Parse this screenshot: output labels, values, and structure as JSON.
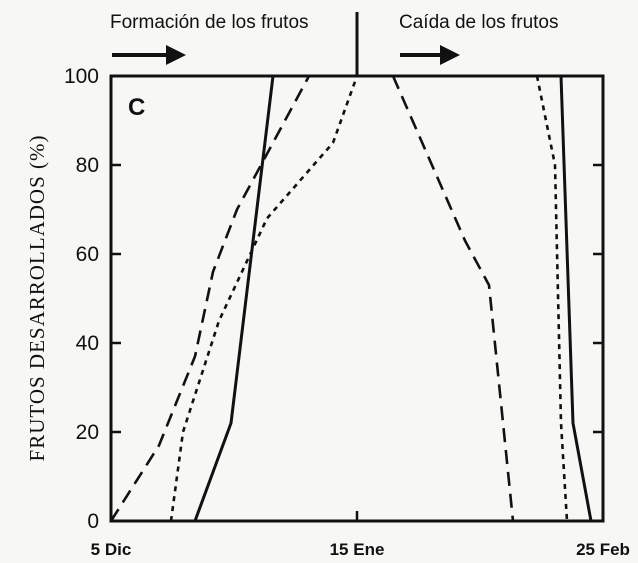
{
  "chart_data": {
    "type": "line",
    "ylabel": "FRUTOS DESARROLLADOS (%)",
    "ylim": [
      0,
      100
    ],
    "yticks": [
      "0",
      "20",
      "40",
      "60",
      "80",
      "100"
    ],
    "xlim": [
      0,
      82
    ],
    "xticks": [
      {
        "label": "5 Dic",
        "x": 0
      },
      {
        "label": "15 Ene",
        "x": 41
      },
      {
        "label": "25 Feb",
        "x": 82
      }
    ],
    "panel_label": "C",
    "annotations": {
      "left_phase": "Formación de los frutos",
      "right_phase": "Caída de los frutos",
      "divider_x": 41
    },
    "series": [
      {
        "style": "dashed",
        "x": [
          0,
          8,
          14,
          17,
          21,
          33
        ],
        "y": [
          0,
          17,
          37,
          56,
          70,
          100
        ]
      },
      {
        "style": "dotted",
        "x": [
          10,
          12,
          18,
          26,
          37,
          41
        ],
        "y": [
          0,
          20,
          45,
          68,
          85,
          100
        ]
      },
      {
        "style": "solid",
        "x": [
          14,
          20,
          27
        ],
        "y": [
          0,
          22,
          100
        ]
      },
      {
        "style": "dashed",
        "x": [
          47,
          59,
          63,
          67
        ],
        "y": [
          100,
          63,
          53,
          0
        ]
      },
      {
        "style": "dotted",
        "x": [
          71,
          74,
          75,
          76
        ],
        "y": [
          100,
          80,
          22,
          0
        ]
      },
      {
        "style": "solid",
        "x": [
          75,
          77,
          80
        ],
        "y": [
          100,
          22,
          0
        ]
      }
    ]
  }
}
